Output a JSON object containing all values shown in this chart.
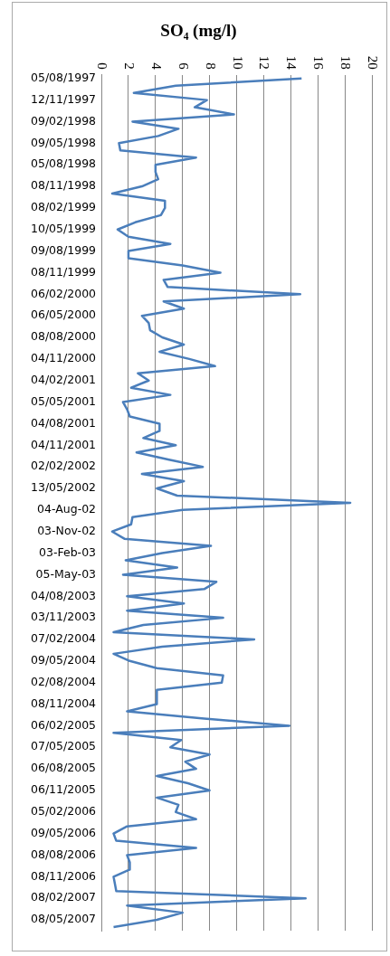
{
  "chart_data": {
    "type": "line",
    "orientation": "horizontal",
    "title": "SO₄ (mg/l)",
    "categories": [
      "05/08/1997",
      null,
      null,
      "12/11/1997",
      null,
      null,
      "09/02/1998",
      null,
      null,
      "09/05/1998",
      null,
      null,
      "05/08/1998",
      null,
      null,
      "08/11/1998",
      null,
      null,
      "08/02/1999",
      null,
      null,
      "10/05/1999",
      null,
      null,
      "09/08/1999",
      null,
      null,
      "08/11/1999",
      null,
      null,
      "06/02/2000",
      null,
      null,
      "06/05/2000",
      null,
      null,
      "08/08/2000",
      null,
      null,
      "04/11/2000",
      null,
      null,
      "04/02/2001",
      null,
      null,
      "05/05/2001",
      null,
      null,
      "04/08/2001",
      null,
      null,
      "04/11/2001",
      null,
      null,
      "02/02/2002",
      null,
      null,
      "13/05/2002",
      null,
      null,
      "04-Aug-02",
      null,
      null,
      "03-Nov-02",
      null,
      null,
      "03-Feb-03",
      null,
      null,
      "05-May-03",
      null,
      null,
      "04/08/2003",
      null,
      null,
      "03/11/2003",
      null,
      null,
      "07/02/2004",
      null,
      null,
      "09/05/2004",
      null,
      null,
      "02/08/2004",
      null,
      null,
      "08/11/2004",
      null,
      null,
      "06/02/2005",
      null,
      null,
      "07/05/2005",
      null,
      null,
      "06/08/2005",
      null,
      null,
      "06/11/2005",
      null,
      null,
      "05/02/2006",
      null,
      null,
      "09/05/2006",
      null,
      null,
      "08/08/2006",
      null,
      null,
      "08/11/2006",
      null,
      null,
      "08/02/2007",
      null,
      null,
      "08/05/2007",
      null
    ],
    "series": [
      {
        "color": "#4a7ebb",
        "values": [
          14.8,
          5.5,
          2.4,
          7.8,
          6.9,
          9.8,
          2.3,
          5.7,
          4.2,
          1.3,
          1.4,
          7.0,
          4.0,
          4.0,
          4.2,
          3.0,
          0.8,
          4.7,
          4.7,
          4.4,
          2.5,
          1.2,
          2.0,
          5.1,
          2.0,
          2.0,
          6.0,
          8.8,
          4.6,
          4.9,
          14.7,
          4.6,
          6.1,
          3.0,
          3.5,
          3.6,
          4.5,
          6.1,
          4.3,
          6.5,
          8.4,
          2.7,
          3.5,
          2.2,
          5.1,
          1.6,
          1.9,
          2.1,
          4.3,
          4.3,
          3.1,
          5.5,
          2.6,
          5.0,
          7.5,
          3.0,
          6.1,
          4.1,
          5.6,
          18.4,
          6.0,
          2.3,
          2.2,
          0.8,
          1.7,
          8.1,
          4.5,
          1.8,
          5.6,
          1.6,
          8.5,
          7.6,
          1.9,
          6.1,
          1.9,
          9.0,
          3.1,
          0.9,
          11.3,
          4.5,
          0.9,
          2.1,
          4.1,
          9.0,
          8.9,
          4.1,
          4.1,
          4.1,
          1.9,
          7.6,
          13.9,
          0.9,
          5.9,
          5.1,
          8.0,
          6.2,
          7.0,
          4.1,
          6.4,
          8.0,
          4.1,
          5.7,
          5.5,
          7.0,
          1.9,
          0.9,
          1.1,
          7.0,
          1.9,
          2.1,
          2.1,
          0.9,
          1.0,
          1.1,
          15.1,
          1.9,
          6.0,
          4.1,
          0.9
        ]
      }
    ],
    "xlim": [
      0,
      20
    ],
    "xticks": [
      0,
      2,
      4,
      6,
      8,
      10,
      12,
      14,
      16,
      18,
      20
    ],
    "grid": "x"
  }
}
